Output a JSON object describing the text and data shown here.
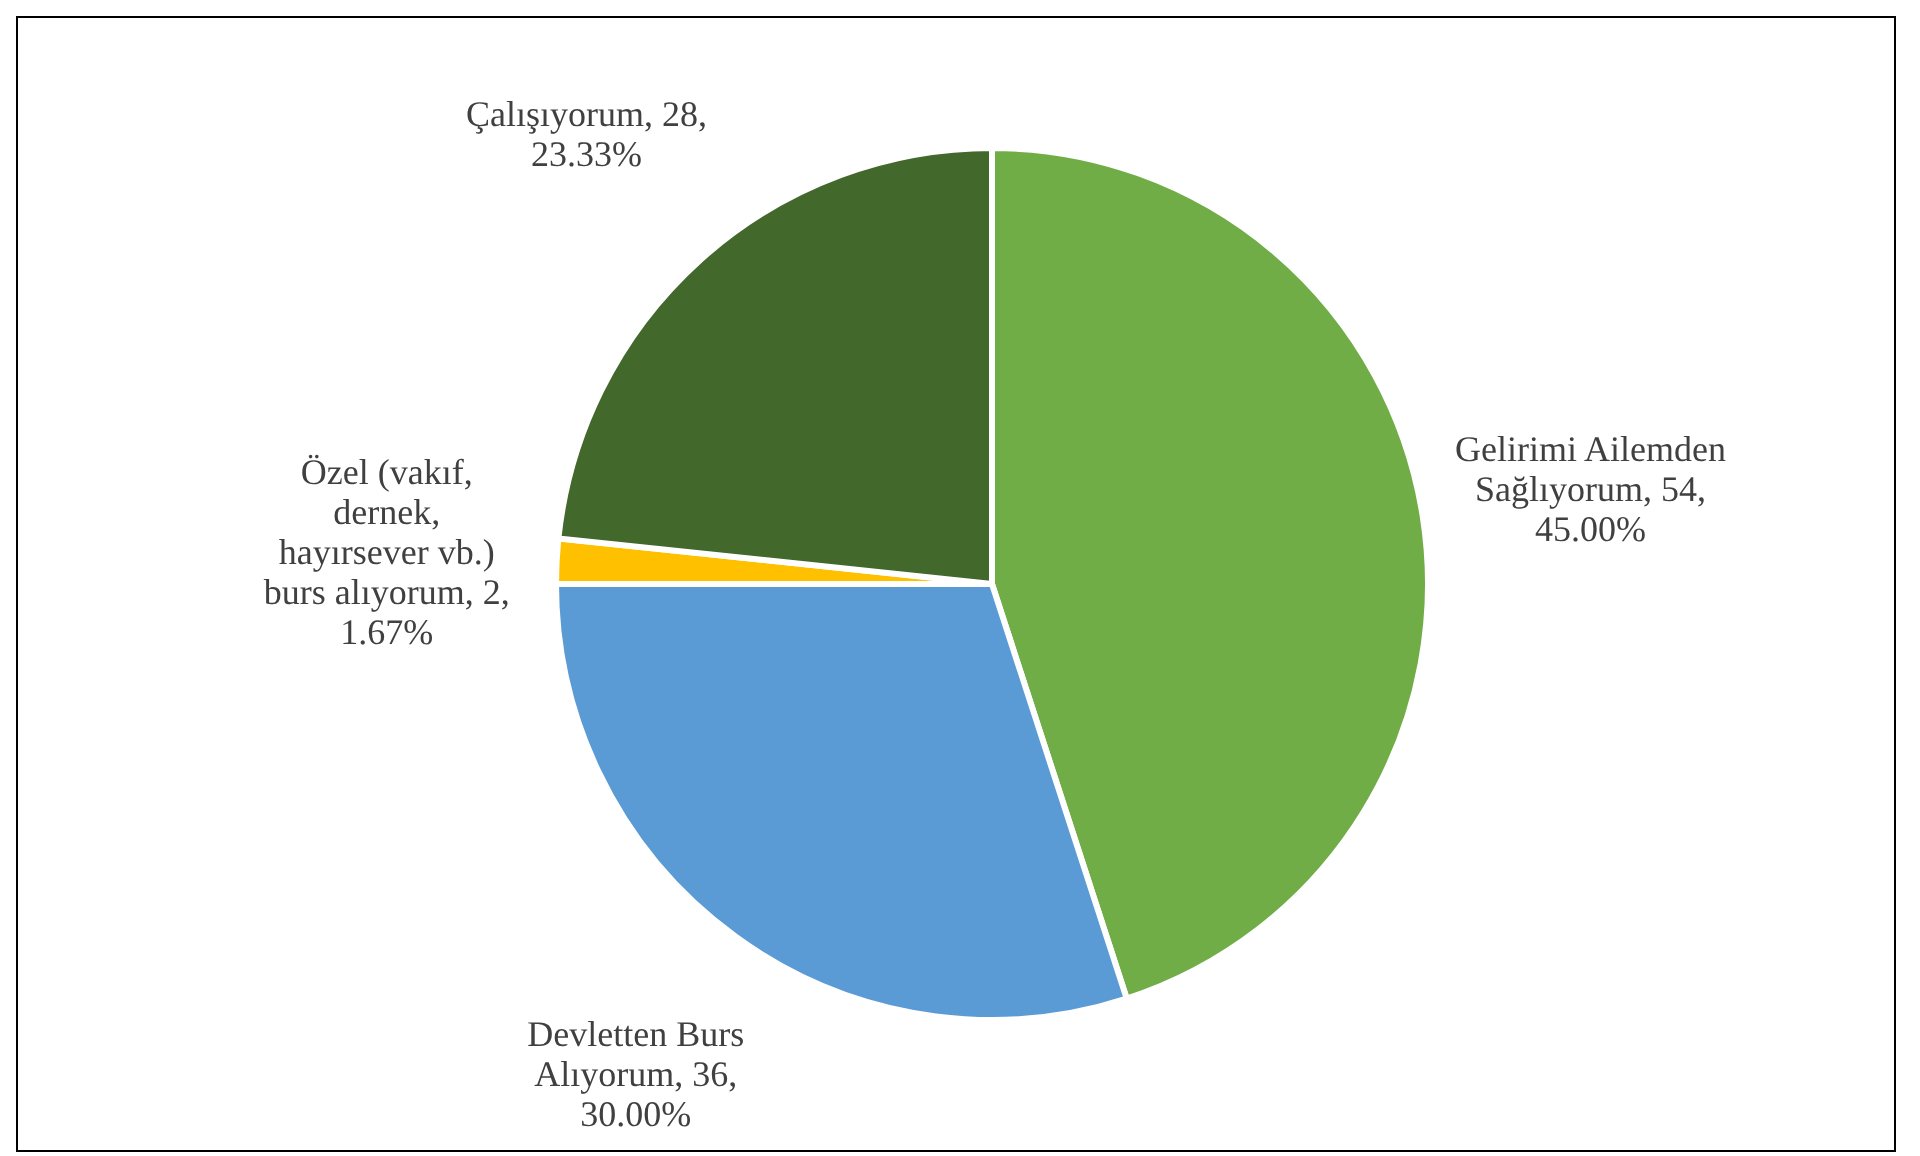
{
  "chart_data": {
    "type": "pie",
    "categories": [
      "Gelirimi Ailemden Sağlıyorum",
      "Devletten Burs Alıyorum",
      "Özel (vakıf, dernek, hayırsever vb.) burs alıyorum",
      "Çalışıyorum"
    ],
    "values": [
      54,
      36,
      2,
      28
    ],
    "colors": [
      "#70ad47",
      "#5b9bd5",
      "#ffc000",
      "#43682b"
    ],
    "value_labels": [
      "54, 45.00%",
      "36, 30.00%",
      "2, 1.67%",
      "28, 23.33%"
    ],
    "legend": false
  }
}
